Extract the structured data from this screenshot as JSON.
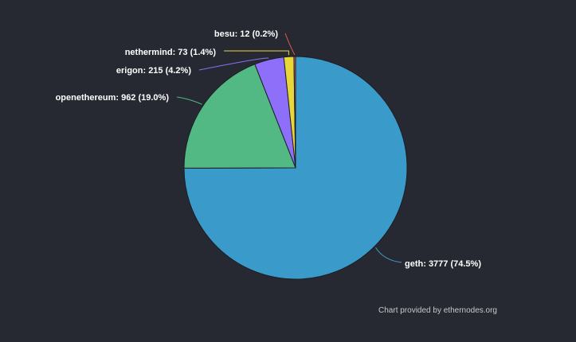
{
  "chart_data": {
    "type": "pie",
    "title": "",
    "slices": [
      {
        "label": "geth",
        "value": 3777,
        "percent": "74.5%",
        "color": "#3a9bcb",
        "text": "geth: 3777 (74.5%)"
      },
      {
        "label": "openethereum",
        "value": 962,
        "percent": "19.0%",
        "color": "#52b884",
        "text": "openethereum: 962 (19.0%)"
      },
      {
        "label": "erigon",
        "value": 215,
        "percent": "4.2%",
        "color": "#8e6ffa",
        "text": "erigon: 215 (4.2%)"
      },
      {
        "label": "nethermind",
        "value": 73,
        "percent": "1.4%",
        "color": "#e8d73a",
        "text": "nethermind: 73 (1.4%)"
      },
      {
        "label": "besu",
        "value": 12,
        "percent": "0.2%",
        "color": "#e25a55",
        "text": "besu: 12 (0.2%)"
      }
    ],
    "start_angle": "top",
    "direction": "clockwise"
  },
  "credit": "Chart provided by ethernodes.org",
  "colors": {
    "background": "#262932",
    "label_text": "#ffffff",
    "slice_border": "#1c1e24"
  }
}
